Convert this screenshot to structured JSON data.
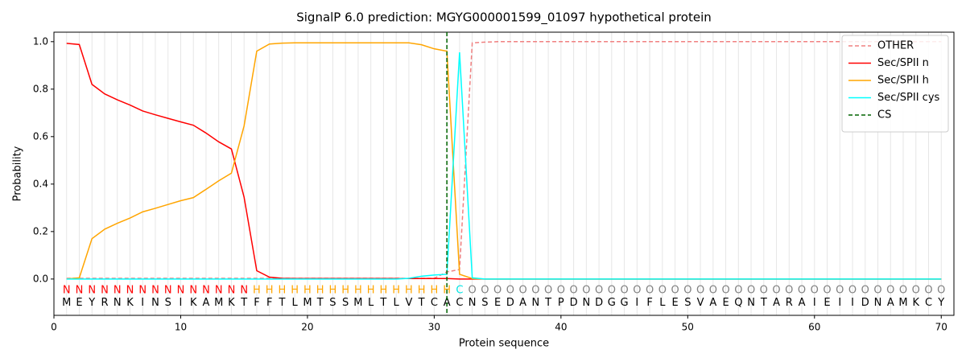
{
  "chart_data": {
    "type": "line",
    "title": "SignalP 6.0 prediction: MGYG000001599_01097 hypothetical protein",
    "xlabel": "Protein sequence",
    "ylabel": "Probability",
    "x": [
      1,
      2,
      3,
      4,
      5,
      6,
      7,
      8,
      9,
      10,
      11,
      12,
      13,
      14,
      15,
      16,
      17,
      18,
      19,
      20,
      21,
      22,
      23,
      24,
      25,
      26,
      27,
      28,
      29,
      30,
      31,
      32,
      33,
      34,
      35,
      36,
      37,
      38,
      39,
      40,
      41,
      42,
      43,
      44,
      45,
      46,
      47,
      48,
      49,
      50,
      51,
      52,
      53,
      54,
      55,
      56,
      57,
      58,
      59,
      60,
      61,
      62,
      63,
      64,
      65,
      66,
      67,
      68,
      69,
      70
    ],
    "series": [
      {
        "name": "OTHER",
        "color": "#f08080",
        "dashed": true,
        "values": [
          0.003,
          0.003,
          0.003,
          0.003,
          0.003,
          0.003,
          0.003,
          0.003,
          0.003,
          0.003,
          0.003,
          0.003,
          0.003,
          0.003,
          0.003,
          0.003,
          0.003,
          0.003,
          0.003,
          0.003,
          0.003,
          0.003,
          0.003,
          0.003,
          0.003,
          0.003,
          0.003,
          0.003,
          0.003,
          0.003,
          0.03,
          0.04,
          0.995,
          0.998,
          1.0,
          1.0,
          1.0,
          1.0,
          1.0,
          1.0,
          1.0,
          1.0,
          1.0,
          1.0,
          1.0,
          1.0,
          1.0,
          1.0,
          1.0,
          1.0,
          1.0,
          1.0,
          1.0,
          1.0,
          1.0,
          1.0,
          1.0,
          1.0,
          1.0,
          1.0,
          1.0,
          1.0,
          1.0,
          1.0,
          1.0,
          1.0,
          1.0,
          1.0,
          1.0,
          1.0
        ]
      },
      {
        "name": "Sec/SPII n",
        "color": "#ff0000",
        "values": [
          0.993,
          0.988,
          0.82,
          0.78,
          0.755,
          0.733,
          0.708,
          0.692,
          0.677,
          0.662,
          0.648,
          0.615,
          0.578,
          0.548,
          0.345,
          0.035,
          0.008,
          0.003,
          0.002,
          0.002,
          0.002,
          0.002,
          0.002,
          0.002,
          0.002,
          0.002,
          0.002,
          0.002,
          0.002,
          0.002,
          0.002,
          0,
          0,
          0,
          0,
          0,
          0,
          0,
          0,
          0,
          0,
          0,
          0,
          0,
          0,
          0,
          0,
          0,
          0,
          0,
          0,
          0,
          0,
          0,
          0,
          0,
          0,
          0,
          0,
          0,
          0,
          0,
          0,
          0,
          0,
          0,
          0,
          0,
          0,
          0
        ]
      },
      {
        "name": "Sec/SPII h",
        "color": "#ffa500",
        "values": [
          0.0,
          0.005,
          0.17,
          0.21,
          0.235,
          0.257,
          0.283,
          0.298,
          0.314,
          0.33,
          0.343,
          0.378,
          0.414,
          0.446,
          0.645,
          0.96,
          0.99,
          0.994,
          0.995,
          0.995,
          0.995,
          0.995,
          0.995,
          0.995,
          0.995,
          0.995,
          0.995,
          0.995,
          0.987,
          0.97,
          0.96,
          0.02,
          0.002,
          0,
          0,
          0,
          0,
          0,
          0,
          0,
          0,
          0,
          0,
          0,
          0,
          0,
          0,
          0,
          0,
          0,
          0,
          0,
          0,
          0,
          0,
          0,
          0,
          0,
          0,
          0,
          0,
          0,
          0,
          0,
          0,
          0,
          0,
          0,
          0,
          0
        ]
      },
      {
        "name": "Sec/SPII cys",
        "color": "#00ffff",
        "values": [
          0,
          0,
          0,
          0,
          0,
          0,
          0,
          0,
          0,
          0,
          0,
          0,
          0,
          0,
          0,
          0,
          0,
          0,
          0,
          0,
          0,
          0,
          0,
          0,
          0,
          0,
          0,
          0.003,
          0.012,
          0.017,
          0.02,
          0.955,
          0.005,
          0,
          0,
          0,
          0,
          0,
          0,
          0,
          0,
          0,
          0,
          0,
          0,
          0,
          0,
          0,
          0,
          0,
          0,
          0,
          0,
          0,
          0,
          0,
          0,
          0,
          0,
          0,
          0,
          0,
          0,
          0,
          0,
          0,
          0,
          0,
          0,
          0
        ]
      }
    ],
    "cleavage_site": {
      "name": "CS",
      "x": 31,
      "color": "#006400"
    },
    "residues": [
      "M",
      "E",
      "Y",
      "R",
      "N",
      "K",
      "I",
      "N",
      "S",
      "I",
      "K",
      "A",
      "M",
      "K",
      "T",
      "F",
      "F",
      "T",
      "L",
      "M",
      "T",
      "S",
      "S",
      "M",
      "L",
      "T",
      "L",
      "V",
      "T",
      "C",
      "A",
      "C",
      "N",
      "S",
      "E",
      "D",
      "A",
      "N",
      "T",
      "P",
      "D",
      "N",
      "D",
      "G",
      "G",
      "I",
      "F",
      "L",
      "E",
      "S",
      "V",
      "A",
      "E",
      "Q",
      "N",
      "T",
      "A",
      "R",
      "A",
      "I",
      "E",
      "I",
      "I",
      "D",
      "N",
      "A",
      "M",
      "K",
      "C",
      "Y"
    ],
    "labels": [
      "N",
      "N",
      "N",
      "N",
      "N",
      "N",
      "N",
      "N",
      "N",
      "N",
      "N",
      "N",
      "N",
      "N",
      "N",
      "H",
      "H",
      "H",
      "H",
      "H",
      "H",
      "H",
      "H",
      "H",
      "H",
      "H",
      "H",
      "H",
      "H",
      "H",
      "H",
      "C",
      "O",
      "O",
      "O",
      "O",
      "O",
      "O",
      "O",
      "O",
      "O",
      "O",
      "O",
      "O",
      "O",
      "O",
      "O",
      "O",
      "O",
      "O",
      "O",
      "O",
      "O",
      "O",
      "O",
      "O",
      "O",
      "O",
      "O",
      "O",
      "O",
      "O",
      "O",
      "O",
      "O",
      "O",
      "O",
      "O",
      "O",
      "O"
    ],
    "label_colors": {
      "N": "#ff0000",
      "H": "#ffa500",
      "C": "#00e5e5",
      "O": "#808080"
    },
    "xlim": [
      0,
      71
    ],
    "ylim": [
      -0.153,
      1.04
    ],
    "xticks": [
      0,
      10,
      20,
      30,
      40,
      50,
      60,
      70
    ],
    "yticks": [
      {
        "value": 0,
        "label": "0.0"
      },
      {
        "value": 0.2,
        "label": "0.2"
      },
      {
        "value": 0.4,
        "label": "0.4"
      },
      {
        "value": 0.6,
        "label": "0.6"
      },
      {
        "value": 0.8,
        "label": "0.8"
      },
      {
        "value": 1.0,
        "label": "1.0"
      }
    ],
    "grid": "x",
    "legend": "upper right"
  }
}
